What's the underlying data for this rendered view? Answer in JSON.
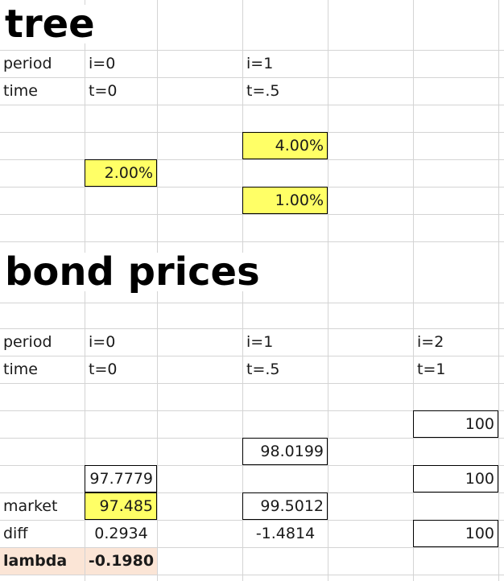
{
  "colors": {
    "grid": "#d4d4d4",
    "input_fill": "#ffff66",
    "lambda_fill": "#fbe5d6",
    "box_border": "#000000"
  },
  "tree": {
    "title": "tree",
    "header": {
      "period_label": "period",
      "time_label": "time",
      "periods": [
        "i=0",
        "i=1"
      ],
      "times": [
        "t=0",
        "t=.5"
      ]
    },
    "rates": {
      "i0_node": "2.00%",
      "i1_up": "4.00%",
      "i1_down": "1.00%"
    }
  },
  "bond_prices": {
    "title": "bond prices",
    "header": {
      "period_label": "period",
      "time_label": "time",
      "periods": [
        "i=0",
        "i=1",
        "i=2"
      ],
      "times": [
        "t=0",
        "t=.5",
        "t=1"
      ]
    },
    "i2": {
      "up": "100",
      "mid": "100",
      "down": "100"
    },
    "i1": {
      "node_up": "98.0199",
      "market": "99.5012",
      "diff": "-1.4814"
    },
    "i0": {
      "node": "97.7779",
      "market": "97.485",
      "diff": "0.2934"
    },
    "labels": {
      "market": "market",
      "diff": "diff",
      "lambda": "lambda"
    },
    "lambda_value": "-0.1980"
  }
}
